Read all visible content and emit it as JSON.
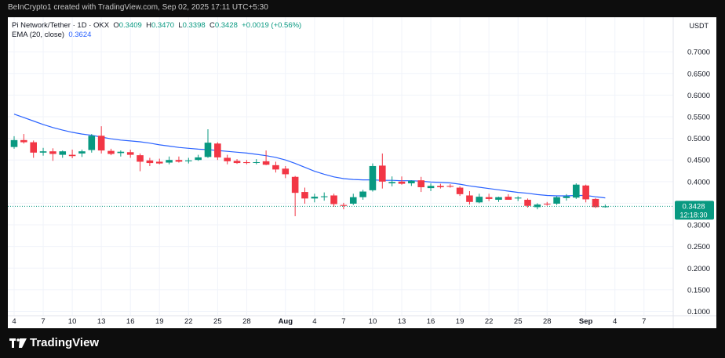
{
  "topbar": {
    "credit": "BeInCrypto1 created with TradingView.com, Sep 02, 2025 17:11 UTC+5:30"
  },
  "legend": {
    "symbol": "Pi Network/Tether · 1D · OKX",
    "o_label": "O",
    "o_value": "0.3409",
    "h_label": "H",
    "h_value": "0.3470",
    "l_label": "L",
    "l_value": "0.3398",
    "c_label": "C",
    "c_value": "0.3428",
    "change": "+0.0019 (+0.56%)",
    "ema_label": "EMA (20, close)",
    "ema_value": "0.3624"
  },
  "price_badge": {
    "price": "0.3428",
    "countdown": "12:18:30"
  },
  "footer": {
    "brand": "TradingView"
  },
  "colors": {
    "up": "#089981",
    "down": "#f23645",
    "ema": "#2962ff",
    "grid": "#f0f3fa"
  },
  "chart_data": {
    "type": "candlestick",
    "ylabel": "USDT",
    "ylim": [
      0.09,
      0.78
    ],
    "yticks": [
      "0.7000",
      "0.6500",
      "0.6000",
      "0.5500",
      "0.5000",
      "0.4500",
      "0.4000",
      "0.3500",
      "0.3000",
      "0.2500",
      "0.2000",
      "0.1500",
      "0.1000"
    ],
    "xticks": [
      {
        "label": "4",
        "i": 0
      },
      {
        "label": "7",
        "i": 3
      },
      {
        "label": "10",
        "i": 6
      },
      {
        "label": "13",
        "i": 9
      },
      {
        "label": "16",
        "i": 12
      },
      {
        "label": "19",
        "i": 15
      },
      {
        "label": "22",
        "i": 18
      },
      {
        "label": "25",
        "i": 21
      },
      {
        "label": "28",
        "i": 24
      },
      {
        "label": "Aug",
        "i": 28
      },
      {
        "label": "4",
        "i": 31
      },
      {
        "label": "7",
        "i": 34
      },
      {
        "label": "10",
        "i": 37
      },
      {
        "label": "13",
        "i": 40
      },
      {
        "label": "16",
        "i": 43
      },
      {
        "label": "19",
        "i": 46
      },
      {
        "label": "22",
        "i": 49
      },
      {
        "label": "25",
        "i": 52
      },
      {
        "label": "28",
        "i": 55
      },
      {
        "label": "Sep",
        "i": 59
      },
      {
        "label": "4",
        "i": 62
      },
      {
        "label": "7",
        "i": 65
      }
    ],
    "candles": [
      {
        "o": 0.48,
        "h": 0.505,
        "l": 0.476,
        "c": 0.496
      },
      {
        "o": 0.496,
        "h": 0.51,
        "l": 0.488,
        "c": 0.491
      },
      {
        "o": 0.491,
        "h": 0.495,
        "l": 0.455,
        "c": 0.467
      },
      {
        "o": 0.467,
        "h": 0.478,
        "l": 0.46,
        "c": 0.47
      },
      {
        "o": 0.47,
        "h": 0.477,
        "l": 0.448,
        "c": 0.464
      },
      {
        "o": 0.462,
        "h": 0.472,
        "l": 0.455,
        "c": 0.47
      },
      {
        "o": 0.462,
        "h": 0.474,
        "l": 0.454,
        "c": 0.459
      },
      {
        "o": 0.465,
        "h": 0.474,
        "l": 0.457,
        "c": 0.47
      },
      {
        "o": 0.473,
        "h": 0.51,
        "l": 0.467,
        "c": 0.506
      },
      {
        "o": 0.506,
        "h": 0.528,
        "l": 0.465,
        "c": 0.472
      },
      {
        "o": 0.471,
        "h": 0.476,
        "l": 0.461,
        "c": 0.464
      },
      {
        "o": 0.466,
        "h": 0.472,
        "l": 0.458,
        "c": 0.469
      },
      {
        "o": 0.468,
        "h": 0.474,
        "l": 0.455,
        "c": 0.462
      },
      {
        "o": 0.461,
        "h": 0.465,
        "l": 0.424,
        "c": 0.446
      },
      {
        "o": 0.449,
        "h": 0.455,
        "l": 0.436,
        "c": 0.443
      },
      {
        "o": 0.446,
        "h": 0.453,
        "l": 0.44,
        "c": 0.442
      },
      {
        "o": 0.444,
        "h": 0.458,
        "l": 0.44,
        "c": 0.45
      },
      {
        "o": 0.45,
        "h": 0.458,
        "l": 0.444,
        "c": 0.446
      },
      {
        "o": 0.447,
        "h": 0.455,
        "l": 0.442,
        "c": 0.449
      },
      {
        "o": 0.45,
        "h": 0.462,
        "l": 0.448,
        "c": 0.456
      },
      {
        "o": 0.457,
        "h": 0.521,
        "l": 0.455,
        "c": 0.49
      },
      {
        "o": 0.488,
        "h": 0.491,
        "l": 0.45,
        "c": 0.456
      },
      {
        "o": 0.455,
        "h": 0.462,
        "l": 0.44,
        "c": 0.447
      },
      {
        "o": 0.448,
        "h": 0.452,
        "l": 0.441,
        "c": 0.443
      },
      {
        "o": 0.445,
        "h": 0.45,
        "l": 0.44,
        "c": 0.443
      },
      {
        "o": 0.444,
        "h": 0.452,
        "l": 0.44,
        "c": 0.445
      },
      {
        "o": 0.447,
        "h": 0.472,
        "l": 0.438,
        "c": 0.439
      },
      {
        "o": 0.438,
        "h": 0.446,
        "l": 0.421,
        "c": 0.428
      },
      {
        "o": 0.43,
        "h": 0.436,
        "l": 0.408,
        "c": 0.417
      },
      {
        "o": 0.411,
        "h": 0.413,
        "l": 0.32,
        "c": 0.374
      },
      {
        "o": 0.376,
        "h": 0.386,
        "l": 0.349,
        "c": 0.361
      },
      {
        "o": 0.361,
        "h": 0.372,
        "l": 0.352,
        "c": 0.365
      },
      {
        "o": 0.364,
        "h": 0.375,
        "l": 0.356,
        "c": 0.366
      },
      {
        "o": 0.368,
        "h": 0.372,
        "l": 0.342,
        "c": 0.348
      },
      {
        "o": 0.346,
        "h": 0.351,
        "l": 0.336,
        "c": 0.344
      },
      {
        "o": 0.349,
        "h": 0.372,
        "l": 0.346,
        "c": 0.364
      },
      {
        "o": 0.364,
        "h": 0.381,
        "l": 0.358,
        "c": 0.377
      },
      {
        "o": 0.38,
        "h": 0.442,
        "l": 0.377,
        "c": 0.436
      },
      {
        "o": 0.437,
        "h": 0.465,
        "l": 0.384,
        "c": 0.4
      },
      {
        "o": 0.396,
        "h": 0.412,
        "l": 0.389,
        "c": 0.399
      },
      {
        "o": 0.4,
        "h": 0.412,
        "l": 0.393,
        "c": 0.395
      },
      {
        "o": 0.396,
        "h": 0.403,
        "l": 0.39,
        "c": 0.402
      },
      {
        "o": 0.403,
        "h": 0.411,
        "l": 0.376,
        "c": 0.387
      },
      {
        "o": 0.385,
        "h": 0.396,
        "l": 0.378,
        "c": 0.39
      },
      {
        "o": 0.39,
        "h": 0.395,
        "l": 0.384,
        "c": 0.387
      },
      {
        "o": 0.39,
        "h": 0.394,
        "l": 0.386,
        "c": 0.388
      },
      {
        "o": 0.386,
        "h": 0.389,
        "l": 0.367,
        "c": 0.371
      },
      {
        "o": 0.368,
        "h": 0.378,
        "l": 0.347,
        "c": 0.353
      },
      {
        "o": 0.352,
        "h": 0.372,
        "l": 0.35,
        "c": 0.365
      },
      {
        "o": 0.364,
        "h": 0.372,
        "l": 0.355,
        "c": 0.36
      },
      {
        "o": 0.358,
        "h": 0.365,
        "l": 0.353,
        "c": 0.364
      },
      {
        "o": 0.365,
        "h": 0.371,
        "l": 0.358,
        "c": 0.358
      },
      {
        "o": 0.361,
        "h": 0.366,
        "l": 0.355,
        "c": 0.363
      },
      {
        "o": 0.358,
        "h": 0.361,
        "l": 0.34,
        "c": 0.344
      },
      {
        "o": 0.341,
        "h": 0.35,
        "l": 0.336,
        "c": 0.347
      },
      {
        "o": 0.349,
        "h": 0.353,
        "l": 0.344,
        "c": 0.347
      },
      {
        "o": 0.349,
        "h": 0.366,
        "l": 0.346,
        "c": 0.364
      },
      {
        "o": 0.362,
        "h": 0.371,
        "l": 0.356,
        "c": 0.366
      },
      {
        "o": 0.363,
        "h": 0.396,
        "l": 0.36,
        "c": 0.393
      },
      {
        "o": 0.391,
        "h": 0.393,
        "l": 0.352,
        "c": 0.359
      },
      {
        "o": 0.36,
        "h": 0.362,
        "l": 0.339,
        "c": 0.341
      },
      {
        "o": 0.3409,
        "h": 0.347,
        "l": 0.3398,
        "c": 0.3428
      }
    ],
    "ema": [
      0.556,
      0.548,
      0.54,
      0.532,
      0.525,
      0.519,
      0.514,
      0.51,
      0.507,
      0.503,
      0.499,
      0.496,
      0.494,
      0.492,
      0.489,
      0.485,
      0.482,
      0.479,
      0.477,
      0.475,
      0.474,
      0.472,
      0.47,
      0.468,
      0.466,
      0.463,
      0.46,
      0.456,
      0.45,
      0.442,
      0.433,
      0.424,
      0.417,
      0.411,
      0.407,
      0.405,
      0.404,
      0.404,
      0.403,
      0.403,
      0.402,
      0.402,
      0.401,
      0.399,
      0.398,
      0.397,
      0.394,
      0.39,
      0.387,
      0.384,
      0.381,
      0.378,
      0.375,
      0.373,
      0.37,
      0.368,
      0.367,
      0.367,
      0.368,
      0.368,
      0.365,
      0.3624
    ]
  }
}
